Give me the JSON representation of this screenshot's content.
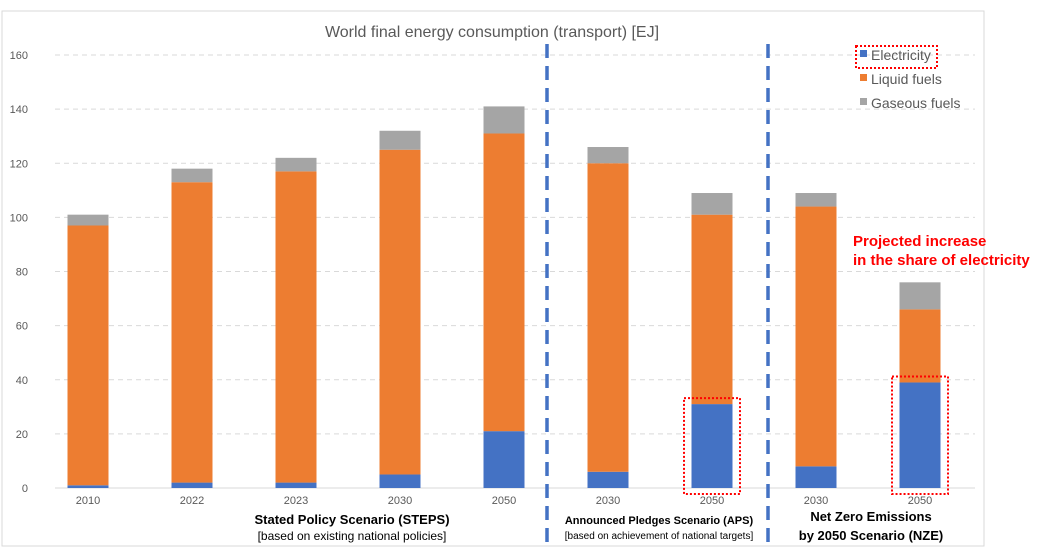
{
  "chart_data": {
    "type": "bar",
    "stacked": true,
    "title": "World final energy consumption (transport) [EJ]",
    "xlabel": "",
    "ylabel": "",
    "ylim": [
      0,
      160
    ],
    "yticks": [
      0,
      20,
      40,
      60,
      80,
      100,
      120,
      140,
      160
    ],
    "grid": true,
    "legend_position": "top-right",
    "categories": [
      "2010",
      "2022",
      "2023",
      "2030",
      "2050",
      "2030",
      "2050",
      "2030",
      "2050"
    ],
    "groups": [
      {
        "label": "Stated Policy Scenario (STEPS)",
        "sublabel": "[based on existing national policies]",
        "categories": [
          0,
          1,
          2,
          3,
          4
        ]
      },
      {
        "label": "Announced Pledges Scenario (APS)",
        "sublabel": "[based on achievement of national targets]",
        "categories": [
          5,
          6
        ]
      },
      {
        "label": "Net Zero Emissions",
        "sublabel": "by 2050 Scenario (NZE)",
        "categories": [
          7,
          8
        ]
      }
    ],
    "series": [
      {
        "name": "Electricity",
        "color": "#4472c4",
        "values": [
          1,
          2,
          2,
          5,
          21,
          6,
          31,
          8,
          39
        ]
      },
      {
        "name": "Liquid fuels",
        "color": "#ed7d31",
        "values": [
          96,
          111,
          115,
          120,
          110,
          114,
          70,
          96,
          27
        ]
      },
      {
        "name": "Gaseous fuels",
        "color": "#a5a5a5",
        "values": [
          4,
          5,
          5,
          7,
          10,
          6,
          8,
          5,
          10
        ]
      }
    ],
    "annotations": {
      "note_line1": "Projected increase",
      "note_line2": "in the share of electricity",
      "highlight_color": "#ff0000",
      "highlighted_categories": [
        6,
        8
      ],
      "divider_color": "#4472c4"
    }
  }
}
